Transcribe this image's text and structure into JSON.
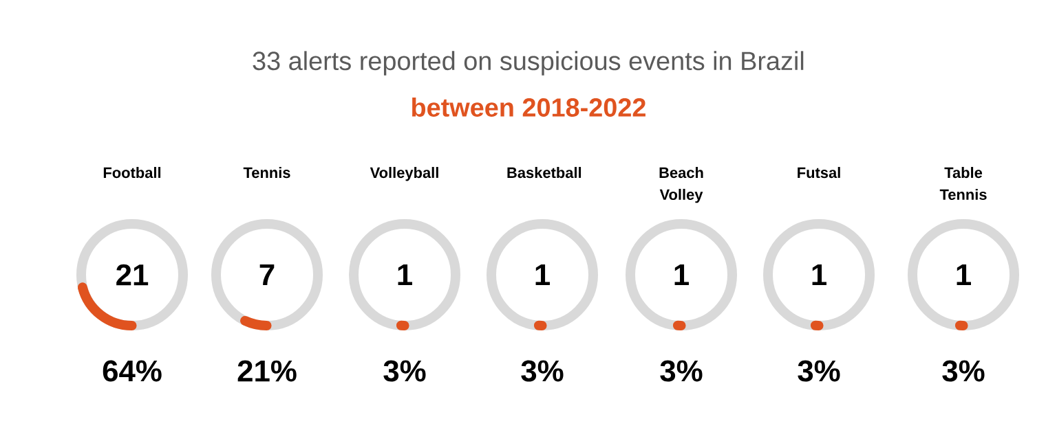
{
  "chart_data": {
    "type": "other",
    "title": "33 alerts reported on suspicious events in Brazil",
    "subtitle": "between 2018-2022",
    "categories": [
      "Football",
      "Tennis",
      "Volleyball",
      "Basketball",
      "Beach Volley",
      "Futsal",
      "Table Tennis"
    ],
    "values": [
      21,
      7,
      1,
      1,
      1,
      1,
      1
    ],
    "data_labels": true,
    "annotations": [
      {
        "text": "64%",
        "x": "Football"
      },
      {
        "text": "21%",
        "x": "Tennis"
      },
      {
        "text": "3%",
        "x": "Volleyball"
      },
      {
        "text": "3%",
        "x": "Basketball"
      },
      {
        "text": "3%",
        "x": "Beach Volley"
      },
      {
        "text": "3%",
        "x": "Futsal"
      },
      {
        "text": "3%",
        "x": "Table Tennis"
      }
    ],
    "color": "#e0531f"
  }
}
